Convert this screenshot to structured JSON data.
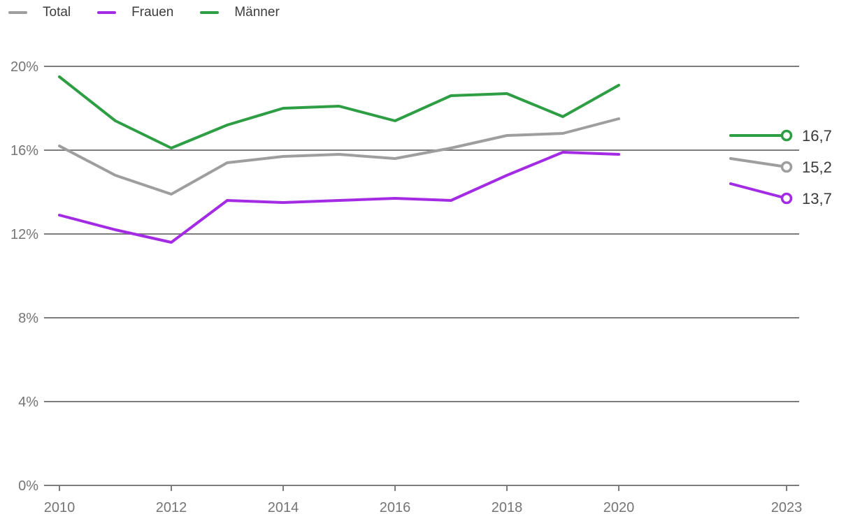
{
  "legend": {
    "items": [
      {
        "label": "Total",
        "color": "#9e9e9e"
      },
      {
        "label": "Frauen",
        "color": "#a32be4"
      },
      {
        "label": "Männer",
        "color": "#2e9e44"
      }
    ]
  },
  "chart_data": {
    "type": "line",
    "title": "",
    "unit": "%",
    "grid": true,
    "legend_position": "top-left",
    "data_gap_years": [
      2021
    ],
    "y_axis": {
      "range": [
        0,
        20
      ],
      "ticks": [
        0,
        4,
        8,
        12,
        16,
        20
      ],
      "tick_labels": [
        "0%",
        "4%",
        "8%",
        "12%",
        "16%",
        "20%"
      ],
      "grid_color": "#7c7c7c",
      "text_color": "#757575"
    },
    "x_axis": {
      "range": [
        2010,
        2023
      ],
      "ticks": [
        2010,
        2012,
        2014,
        2016,
        2018,
        2020,
        2023
      ],
      "tick_labels": [
        "2010",
        "2012",
        "2014",
        "2016",
        "2018",
        "2020",
        "2023"
      ],
      "text_color": "#757575"
    },
    "series": [
      {
        "id": "total",
        "name": "Total",
        "color": "#9e9e9e",
        "segments": [
          {
            "years": [
              2010,
              2011,
              2012,
              2013,
              2014,
              2015,
              2016,
              2017,
              2018,
              2019,
              2020
            ],
            "values": [
              16.2,
              14.8,
              13.9,
              15.4,
              15.7,
              15.8,
              15.6,
              16.1,
              16.7,
              16.8,
              17.5
            ]
          },
          {
            "years": [
              2022,
              2023
            ],
            "values": [
              15.6,
              15.2
            ]
          }
        ],
        "end_label": "15,2"
      },
      {
        "id": "frauen",
        "name": "Frauen",
        "color": "#a32be4",
        "segments": [
          {
            "years": [
              2010,
              2011,
              2012,
              2013,
              2014,
              2015,
              2016,
              2017,
              2018,
              2019,
              2020
            ],
            "values": [
              12.9,
              12.2,
              11.6,
              13.6,
              13.5,
              13.6,
              13.7,
              13.6,
              14.8,
              15.9,
              15.8
            ]
          },
          {
            "years": [
              2022,
              2023
            ],
            "values": [
              14.4,
              13.7
            ]
          }
        ],
        "end_label": "13,7"
      },
      {
        "id": "maenner",
        "name": "Männer",
        "color": "#2e9e44",
        "segments": [
          {
            "years": [
              2010,
              2011,
              2012,
              2013,
              2014,
              2015,
              2016,
              2017,
              2018,
              2019,
              2020
            ],
            "values": [
              19.5,
              17.4,
              16.1,
              17.2,
              18.0,
              18.1,
              17.4,
              18.6,
              18.7,
              17.6,
              19.1
            ]
          },
          {
            "years": [
              2022,
              2023
            ],
            "values": [
              16.7,
              16.7
            ]
          }
        ],
        "end_label": "16,7"
      }
    ]
  }
}
